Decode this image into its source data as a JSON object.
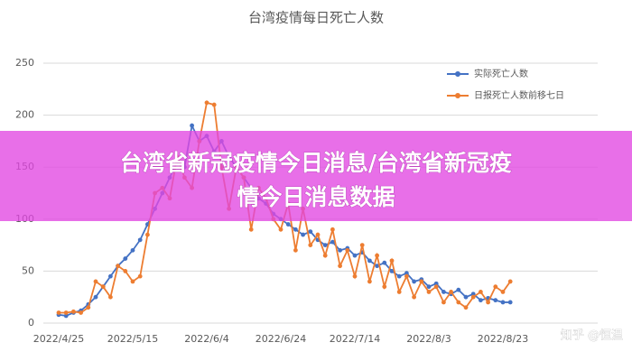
{
  "chart_data": {
    "type": "line",
    "title": "台湾疫情每日死亡人数",
    "categories": [
      "2022/4/25",
      null,
      null,
      null,
      null,
      null,
      null,
      null,
      null,
      null,
      "2022/5/15",
      null,
      null,
      null,
      null,
      null,
      null,
      null,
      null,
      null,
      "2022/6/4",
      null,
      null,
      null,
      null,
      null,
      null,
      null,
      null,
      null,
      "2022/6/24",
      null,
      null,
      null,
      null,
      null,
      null,
      null,
      null,
      null,
      "2022/7/14",
      null,
      null,
      null,
      null,
      null,
      null,
      null,
      null,
      null,
      "2022/8/3",
      null,
      null,
      null,
      null,
      null,
      null,
      null,
      null,
      null,
      "2022/8/23",
      null
    ],
    "series": [
      {
        "name": "实际死亡人数",
        "color": "#4472c4",
        "values": [
          8,
          7,
          10,
          12,
          18,
          25,
          35,
          45,
          55,
          62,
          70,
          80,
          95,
          110,
          125,
          140,
          155,
          150,
          190,
          175,
          180,
          165,
          175,
          160,
          150,
          140,
          130,
          120,
          115,
          105,
          100,
          95,
          90,
          85,
          88,
          80,
          75,
          78,
          70,
          72,
          65,
          68,
          60,
          55,
          58,
          50,
          45,
          48,
          40,
          42,
          35,
          38,
          30,
          28,
          32,
          25,
          28,
          22,
          24,
          22,
          20,
          20
        ]
      },
      {
        "name": "日报死亡人数前移七日",
        "color": "#ed7d31",
        "values": [
          10,
          10,
          11,
          10,
          15,
          40,
          35,
          25,
          55,
          50,
          40,
          45,
          85,
          125,
          130,
          120,
          160,
          140,
          130,
          175,
          212,
          210,
          150,
          110,
          150,
          140,
          90,
          130,
          120,
          100,
          90,
          115,
          70,
          110,
          75,
          85,
          65,
          90,
          55,
          70,
          45,
          75,
          40,
          65,
          35,
          60,
          30,
          45,
          25,
          40,
          30,
          35,
          20,
          30,
          20,
          15,
          25,
          30,
          20,
          35,
          30,
          40
        ]
      }
    ],
    "ylim": [
      0,
      250
    ],
    "yticks": [
      0,
      50,
      100,
      150,
      200,
      250
    ],
    "grid": true,
    "legend": "top-right"
  },
  "banner": [
    "台湾省新冠疫情今日消息/台湾省新冠疫",
    "情今日消息数据"
  ],
  "watermark": "知乎 @恒温"
}
